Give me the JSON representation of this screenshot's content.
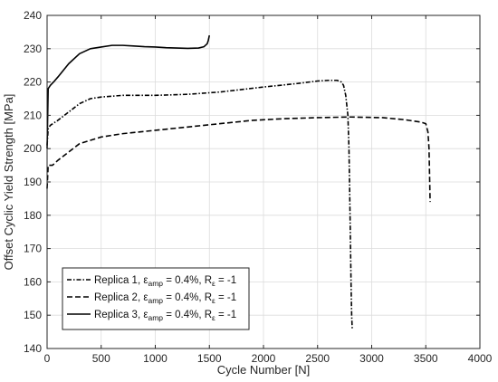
{
  "chart_data": {
    "type": "line",
    "xlabel": "Cycle Number [N]",
    "ylabel": "Offset Cyclic Yield Strength [MPa]",
    "xlim": [
      0,
      4000
    ],
    "ylim": [
      140,
      240
    ],
    "xticks": [
      0,
      500,
      1000,
      1500,
      2000,
      2500,
      3000,
      3500,
      4000
    ],
    "yticks": [
      140,
      150,
      160,
      170,
      180,
      190,
      200,
      210,
      220,
      230,
      240
    ],
    "grid": true,
    "legend_position": "bottom-left",
    "series": [
      {
        "name": "Replica 1, εamp = 0.4%, Rε = -1",
        "legend_parts": {
          "prefix": "Replica 1, ε",
          "sub1": "amp",
          "middle": " = 0.4%, R",
          "sub2": "ε",
          "suffix": " = -1"
        },
        "line_style": "dash-dot",
        "x": [
          0,
          10,
          30,
          100,
          200,
          300,
          400,
          500,
          700,
          1000,
          1300,
          1600,
          2000,
          2300,
          2500,
          2600,
          2680,
          2720,
          2740,
          2760,
          2780,
          2790,
          2800,
          2810,
          2815,
          2820
        ],
        "y": [
          201,
          206,
          207,
          208.5,
          211,
          213.5,
          215,
          215.5,
          216,
          216,
          216.3,
          217,
          218.5,
          219.5,
          220.3,
          220.5,
          220.5,
          220,
          219,
          216,
          210,
          200,
          180,
          158,
          150,
          146
        ]
      },
      {
        "name": "Replica 2, εamp = 0.4%, Rε = -1",
        "legend_parts": {
          "prefix": "Replica 2, ε",
          "sub1": "amp",
          "middle": " = 0.4%, R",
          "sub2": "ε",
          "suffix": " = -1"
        },
        "line_style": "dashed",
        "x": [
          0,
          10,
          50,
          100,
          200,
          300,
          500,
          700,
          1000,
          1300,
          1600,
          1900,
          2200,
          2500,
          2800,
          3100,
          3300,
          3450,
          3500,
          3520,
          3530,
          3540
        ],
        "y": [
          188,
          195,
          195,
          196.5,
          199,
          201.5,
          203.5,
          204.5,
          205.5,
          206.5,
          207.5,
          208.5,
          209,
          209.3,
          209.5,
          209.3,
          208.7,
          208,
          207.5,
          205,
          200,
          184
        ]
      },
      {
        "name": "Replica 3, εamp = 0.4%, Rε = -1",
        "legend_parts": {
          "prefix": "Replica 3, ε",
          "sub1": "amp",
          "middle": " = 0.4%, R",
          "sub2": "ε",
          "suffix": " = -1"
        },
        "line_style": "solid",
        "x": [
          0,
          10,
          30,
          60,
          100,
          150,
          200,
          300,
          400,
          500,
          600,
          700,
          800,
          900,
          1000,
          1100,
          1200,
          1300,
          1400,
          1450,
          1480,
          1490,
          1500
        ],
        "y": [
          200,
          218,
          219,
          220,
          221.5,
          223.5,
          225.5,
          228.5,
          230,
          230.5,
          231,
          231,
          230.8,
          230.6,
          230.5,
          230.3,
          230.2,
          230.1,
          230.2,
          230.6,
          231.5,
          232.5,
          234
        ]
      }
    ]
  }
}
